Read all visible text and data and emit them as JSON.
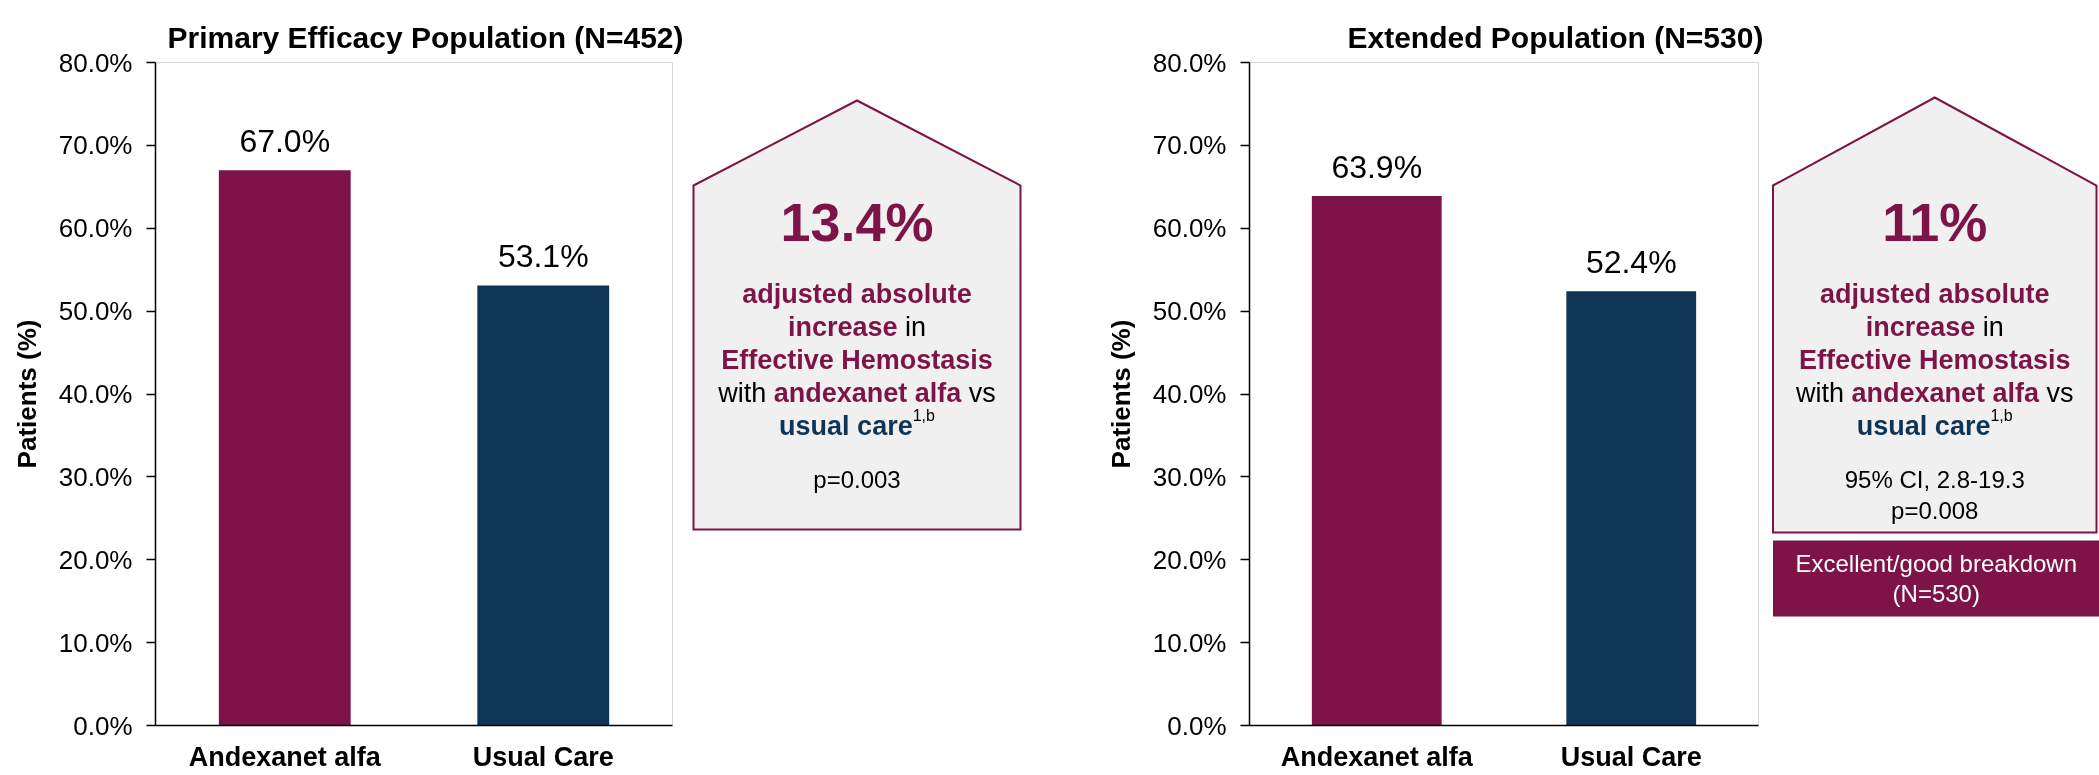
{
  "chart_data": [
    {
      "type": "bar",
      "title": "Primary Efficacy Population (N=452)",
      "ylabel": "Patients (%)",
      "categories": [
        "Andexanet alfa",
        "Usual Care"
      ],
      "values": [
        67.0,
        53.1
      ],
      "colors": [
        "#7d1346",
        "#0e3555"
      ],
      "value_labels": [
        "67.0%",
        "53.1%"
      ],
      "ylim": [
        0,
        80
      ],
      "yticks": [
        {
          "value": 0,
          "label": "0.0%"
        },
        {
          "value": 10,
          "label": "10.0%"
        },
        {
          "value": 20,
          "label": "20.0%"
        },
        {
          "value": 30,
          "label": "30.0%"
        },
        {
          "value": 40,
          "label": "40.0%"
        },
        {
          "value": 50,
          "label": "50.0%"
        },
        {
          "value": 60,
          "label": "60.0%"
        },
        {
          "value": 70,
          "label": "70.0%"
        },
        {
          "value": 80,
          "label": "80.0%"
        }
      ]
    },
    {
      "type": "other",
      "title": "13.4%",
      "subtitle": "adjusted absolute\nincrease in\nEffective Hemostasis\nwith andexanet alfa vs\nusual care$^{1,b}$",
      "annotations": [
        "p=0.003"
      ]
    },
    {
      "type": "bar",
      "title": "Extended Population (N=530)",
      "ylabel": "Patients (%)",
      "categories": [
        "Andexanet alfa",
        "Usual Care"
      ],
      "values": [
        63.9,
        52.4
      ],
      "colors": [
        "#7d1346",
        "#0e3555"
      ],
      "value_labels": [
        "63.9%",
        "52.4%"
      ],
      "ylim": [
        0,
        80
      ],
      "yticks": [
        {
          "value": 0,
          "label": "0.0%"
        },
        {
          "value": 10,
          "label": "10.0%"
        },
        {
          "value": 20,
          "label": "20.0%"
        },
        {
          "value": 30,
          "label": "30.0%"
        },
        {
          "value": 40,
          "label": "40.0%"
        },
        {
          "value": 50,
          "label": "50.0%"
        },
        {
          "value": 60,
          "label": "60.0%"
        },
        {
          "value": 70,
          "label": "70.0%"
        },
        {
          "value": 80,
          "label": "80.0%"
        }
      ]
    },
    {
      "type": "other",
      "title": "11%",
      "subtitle": "adjusted absolute\nincrease in\nEffective Hemostasis\nwith andexanet alfa vs\nusual care$^{1,b}$",
      "annotations": [
        "95% CI, 2.8-19.3",
        "p=0.008"
      ]
    },
    {
      "type": "other",
      "title": "Excellent/good breakdown (N=530)"
    }
  ]
}
